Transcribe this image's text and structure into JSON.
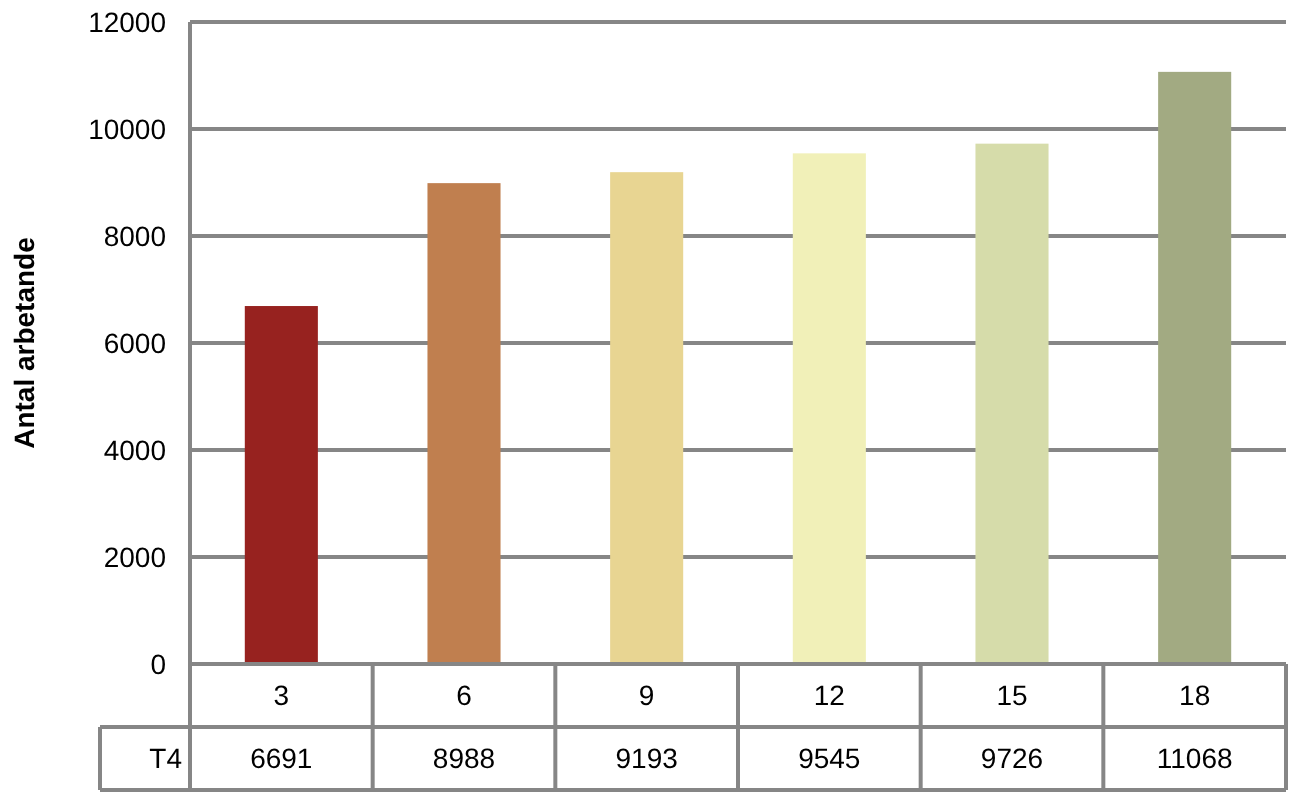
{
  "chart_data": {
    "type": "bar",
    "ylabel": "Antal arbetande",
    "categories": [
      "3",
      "6",
      "9",
      "12",
      "15",
      "18"
    ],
    "series": [
      {
        "name": "T4",
        "values": [
          6691,
          8988,
          9193,
          9545,
          9726,
          11068
        ],
        "colors": [
          "#97221f",
          "#c07f4f",
          "#e8d592",
          "#f1f0b8",
          "#d6dcaa",
          "#a2aa82"
        ]
      }
    ],
    "ylim": [
      0,
      12000
    ],
    "yticks": [
      0,
      2000,
      4000,
      6000,
      8000,
      10000,
      12000
    ],
    "grid": "y",
    "data_labels": true
  }
}
